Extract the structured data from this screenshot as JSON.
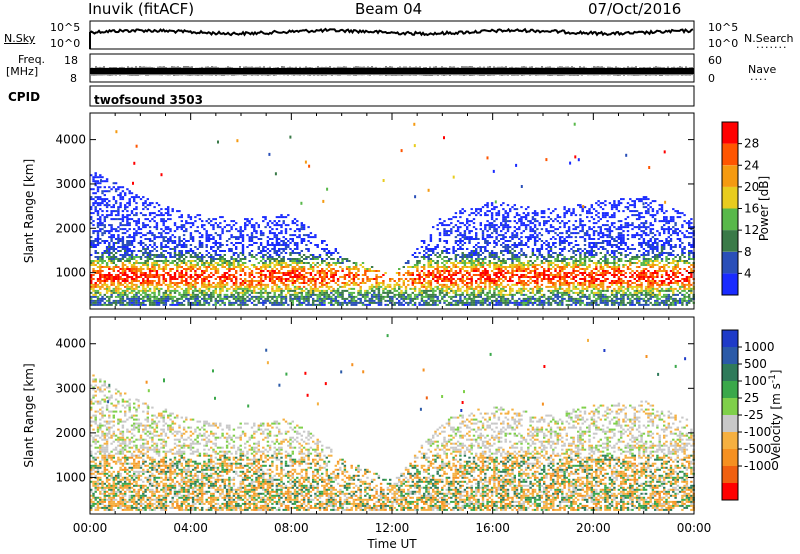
{
  "header": {
    "station": "Inuvik (fitACF)",
    "beam": "Beam 04",
    "date": "07/Oct/2016"
  },
  "strip1": {
    "left_label": "N.Sky",
    "right_label": "N.Search",
    "right_dots": "·······",
    "left_ticks": [
      "10^5",
      "10^0"
    ],
    "right_ticks": [
      "10^5",
      "10^0"
    ]
  },
  "strip2": {
    "left_label_line1": "Freq.",
    "left_label_line2": "[MHz]",
    "right_label": "Nave",
    "right_dots": "····",
    "left_ticks": [
      "18",
      "8"
    ],
    "right_ticks": [
      "60",
      "0"
    ]
  },
  "cpid": {
    "label": "CPID",
    "program": "twofsound 3503"
  },
  "chart_data": [
    {
      "type": "heatmap",
      "panel": "power",
      "ylabel": "Slant Range [km]",
      "ylim": [
        180,
        4600
      ],
      "yticks": [
        1000,
        2000,
        3000,
        4000
      ],
      "colorbar_label": "Power [dB]",
      "colorbar_ticks": [
        4,
        8,
        12,
        16,
        20,
        24,
        28
      ],
      "colorbar_colors": [
        "#1a2bff",
        "#2a4fb8",
        "#3a7a48",
        "#58b84a",
        "#e8cc1e",
        "#f59a10",
        "#ff5500",
        "#ff0000"
      ],
      "range_boundary_km": [
        {
          "time_h": 0,
          "lower": 300,
          "upper": 3300
        },
        {
          "time_h": 2,
          "lower": 300,
          "upper": 2700
        },
        {
          "time_h": 4,
          "lower": 300,
          "upper": 2300
        },
        {
          "time_h": 6,
          "lower": 300,
          "upper": 2200
        },
        {
          "time_h": 8,
          "lower": 300,
          "upper": 2300
        },
        {
          "time_h": 10,
          "lower": 300,
          "upper": 1400
        },
        {
          "time_h": 12,
          "lower": 300,
          "upper": 900
        },
        {
          "time_h": 14,
          "lower": 300,
          "upper": 2300
        },
        {
          "time_h": 16,
          "lower": 300,
          "upper": 2600
        },
        {
          "time_h": 18,
          "lower": 300,
          "upper": 2400
        },
        {
          "time_h": 20,
          "lower": 300,
          "upper": 2600
        },
        {
          "time_h": 22,
          "lower": 300,
          "upper": 2700
        },
        {
          "time_h": 24,
          "lower": 300,
          "upper": 2200
        }
      ]
    },
    {
      "type": "heatmap",
      "panel": "velocity",
      "ylabel": "Slant Range [km]",
      "xlabel": "Time UT",
      "ylim": [
        180,
        4600
      ],
      "yticks": [
        1000,
        2000,
        3000,
        4000
      ],
      "xticks": [
        "00:00",
        "04:00",
        "08:00",
        "12:00",
        "16:00",
        "20:00",
        "00:00"
      ],
      "colorbar_label": "Velocity [m s",
      "colorbar_label_sup": "-1",
      "colorbar_label_end": "]",
      "colorbar_ticks": [
        1000,
        500,
        100,
        25,
        -25,
        -100,
        -500,
        -1000
      ],
      "colorbar_colors": [
        "#1f3bc8",
        "#2b5aa8",
        "#2f7a5a",
        "#3aa84a",
        "#7fd04a",
        "#c8c8c8",
        "#f5b040",
        "#f59020",
        "#f06010",
        "#ff0000"
      ],
      "range_boundary_km": [
        {
          "time_h": 0,
          "lower": 300,
          "upper": 3300
        },
        {
          "time_h": 2,
          "lower": 300,
          "upper": 2700
        },
        {
          "time_h": 4,
          "lower": 300,
          "upper": 2300
        },
        {
          "time_h": 6,
          "lower": 300,
          "upper": 2200
        },
        {
          "time_h": 8,
          "lower": 300,
          "upper": 2300
        },
        {
          "time_h": 10,
          "lower": 300,
          "upper": 1400
        },
        {
          "time_h": 12,
          "lower": 300,
          "upper": 900
        },
        {
          "time_h": 14,
          "lower": 300,
          "upper": 2300
        },
        {
          "time_h": 16,
          "lower": 300,
          "upper": 2600
        },
        {
          "time_h": 18,
          "lower": 300,
          "upper": 2400
        },
        {
          "time_h": 20,
          "lower": 300,
          "upper": 2600
        },
        {
          "time_h": 22,
          "lower": 300,
          "upper": 2700
        },
        {
          "time_h": 24,
          "lower": 300,
          "upper": 2200
        }
      ]
    }
  ]
}
